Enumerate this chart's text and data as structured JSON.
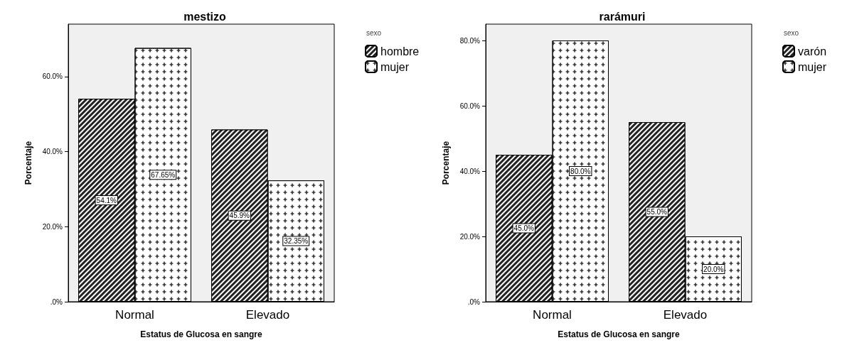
{
  "chart_data": [
    {
      "type": "bar",
      "title": "mestizo",
      "xlabel": "Estatus de Glucosa en sangre",
      "ylabel": "Porcentaje",
      "legend_title": "sexo",
      "legend": "top right",
      "grid": false,
      "categories": [
        "Normal",
        "Elevado"
      ],
      "ylim": [
        0,
        74
      ],
      "yticks": [
        {
          "value": 0,
          "label": ".0%"
        },
        {
          "value": 20,
          "label": "20.0%"
        },
        {
          "value": 40,
          "label": "40.0%"
        },
        {
          "value": 60,
          "label": "60.0%"
        }
      ],
      "series": [
        {
          "name": "hombre",
          "color": "#222222",
          "values": [
            54.1,
            45.9
          ],
          "value_labels": [
            "54.1%",
            "45.9%"
          ]
        },
        {
          "name": "mujer",
          "color": "#ffffff",
          "values": [
            67.65,
            32.35
          ],
          "value_labels": [
            "67.65%",
            "32.35%"
          ]
        }
      ]
    },
    {
      "type": "bar",
      "title": "rarámuri",
      "xlabel": "Estatus de Glucosa en sangre",
      "ylabel": "Porcentaje",
      "legend_title": "sexo",
      "legend": "top right",
      "grid": false,
      "categories": [
        "Normal",
        "Elevado"
      ],
      "ylim": [
        0,
        85
      ],
      "yticks": [
        {
          "value": 0,
          "label": ".0%"
        },
        {
          "value": 20,
          "label": "20.0%"
        },
        {
          "value": 40,
          "label": "40.0%"
        },
        {
          "value": 60,
          "label": "60.0%"
        },
        {
          "value": 80,
          "label": "80.0%"
        }
      ],
      "series": [
        {
          "name": "varón",
          "color": "#222222",
          "values": [
            45.0,
            55.0
          ],
          "value_labels": [
            "45.0%",
            "55.0%"
          ]
        },
        {
          "name": "mujer",
          "color": "#ffffff",
          "values": [
            80.0,
            20.0
          ],
          "value_labels": [
            "80.0%",
            "20.0%"
          ]
        }
      ]
    }
  ]
}
